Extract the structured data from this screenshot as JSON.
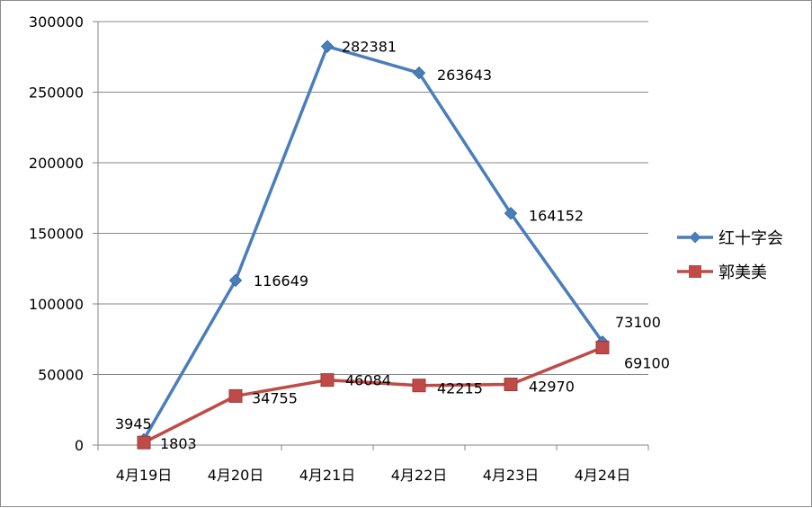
{
  "chart_data": {
    "type": "line",
    "title": "",
    "xlabel": "",
    "ylabel": "",
    "categories": [
      "4月19日",
      "4月20日",
      "4月21日",
      "4月22日",
      "4月23日",
      "4月24日"
    ],
    "ylim": [
      0,
      300000
    ],
    "yticks": [
      0,
      50000,
      100000,
      150000,
      200000,
      250000,
      300000
    ],
    "yticks_labels": [
      "0",
      "50000",
      "100000",
      "150000",
      "200000",
      "250000",
      "300000"
    ],
    "grid": true,
    "legend_position": "right",
    "series": [
      {
        "name": "红十字会",
        "color": "#4A7EBB",
        "marker": "diamond",
        "values": [
          3945,
          116649,
          282381,
          263643,
          164152,
          73100
        ],
        "labels": [
          "3945",
          "116649",
          "282381",
          "263643",
          "164152",
          "73100"
        ]
      },
      {
        "name": "郭美美",
        "color": "#BE4B48",
        "marker": "square",
        "values": [
          1803,
          34755,
          46084,
          42215,
          42970,
          69100
        ],
        "labels": [
          "1803",
          "34755",
          "46084",
          "42215",
          "42970",
          "69100"
        ]
      }
    ]
  }
}
